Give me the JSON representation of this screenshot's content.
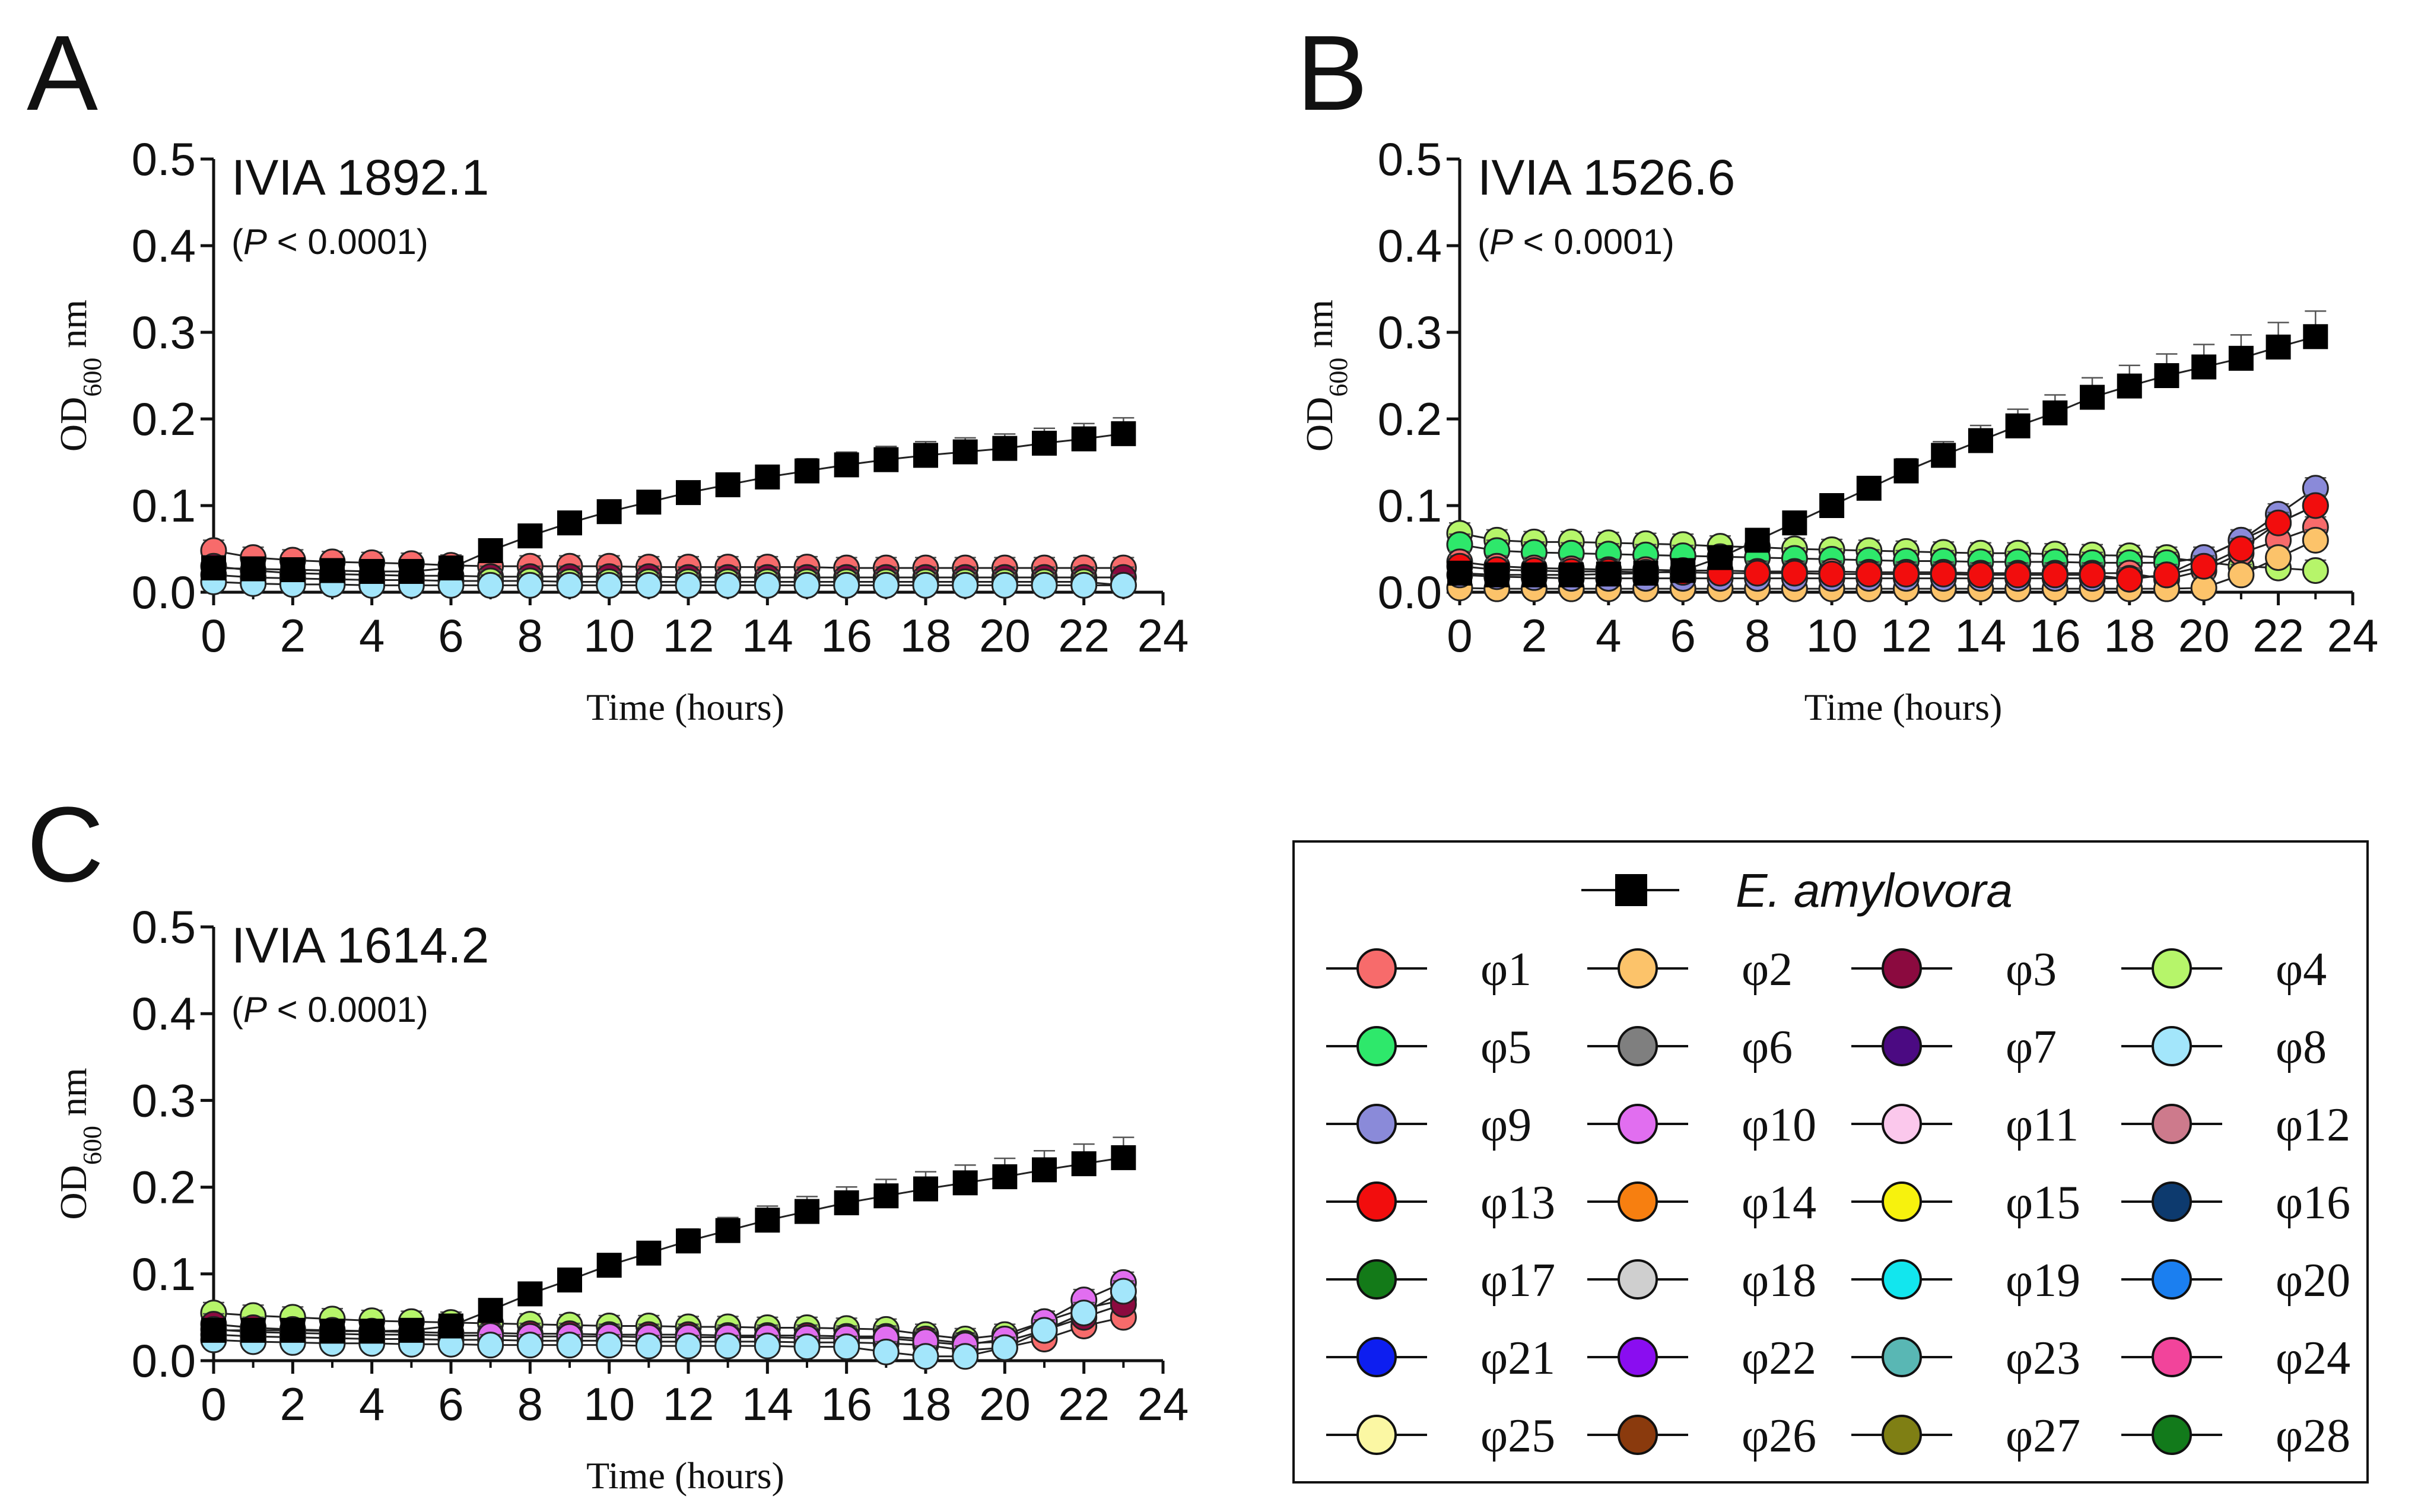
{
  "chart_data": [
    {
      "type": "line",
      "panel": "A",
      "title": "IVIA 1892.1",
      "p_value": "(P < 0.0001)",
      "xlabel": "Time (hours)",
      "ylabel": "OD600 nm",
      "xlim": [
        0,
        24
      ],
      "ylim": [
        0,
        0.5
      ],
      "xticks": [
        0,
        2,
        4,
        6,
        8,
        10,
        12,
        14,
        16,
        18,
        20,
        22,
        24
      ],
      "yticks": [
        0.0,
        0.1,
        0.2,
        0.3,
        0.4,
        0.5
      ],
      "x": [
        0,
        1,
        2,
        3,
        4,
        5,
        6,
        7,
        8,
        9,
        10,
        11,
        12,
        13,
        14,
        15,
        16,
        17,
        18,
        19,
        20,
        21,
        22,
        23
      ],
      "series": [
        {
          "name": "E. amylovora",
          "values": [
            0.028,
            0.027,
            0.026,
            0.025,
            0.024,
            0.024,
            0.028,
            0.048,
            0.065,
            0.08,
            0.093,
            0.104,
            0.115,
            0.124,
            0.133,
            0.14,
            0.147,
            0.153,
            0.158,
            0.162,
            0.166,
            0.172,
            0.177,
            0.183
          ]
        },
        {
          "name": "φ1",
          "values": [
            0.048,
            0.04,
            0.037,
            0.035,
            0.034,
            0.033,
            0.031,
            0.03,
            0.03,
            0.03,
            0.03,
            0.029,
            0.029,
            0.029,
            0.029,
            0.029,
            0.028,
            0.028,
            0.028,
            0.028,
            0.028,
            0.028,
            0.028,
            0.028
          ]
        },
        {
          "name": "φ3",
          "values": [
            0.03,
            0.025,
            0.022,
            0.021,
            0.02,
            0.019,
            0.019,
            0.018,
            0.018,
            0.018,
            0.018,
            0.018,
            0.017,
            0.017,
            0.017,
            0.017,
            0.017,
            0.017,
            0.017,
            0.017,
            0.017,
            0.017,
            0.017,
            0.017
          ]
        },
        {
          "name": "φ4",
          "values": [
            0.02,
            0.017,
            0.016,
            0.015,
            0.014,
            0.014,
            0.013,
            0.013,
            0.013,
            0.012,
            0.012,
            0.012,
            0.012,
            0.012,
            0.012,
            0.012,
            0.012,
            0.012,
            0.012,
            0.012,
            0.012,
            0.012,
            0.012,
            0.008
          ]
        },
        {
          "name": "φ8",
          "values": [
            0.012,
            0.01,
            0.009,
            0.009,
            0.008,
            0.008,
            0.008,
            0.008,
            0.008,
            0.008,
            0.008,
            0.008,
            0.008,
            0.008,
            0.008,
            0.008,
            0.008,
            0.008,
            0.008,
            0.008,
            0.008,
            0.008,
            0.008,
            0.008
          ]
        }
      ]
    },
    {
      "type": "line",
      "panel": "B",
      "title": "IVIA 1526.6",
      "p_value": "(P < 0.0001)",
      "xlabel": "Time (hours)",
      "ylabel": "OD600 nm",
      "xlim": [
        0,
        24
      ],
      "ylim": [
        0,
        0.5
      ],
      "xticks": [
        0,
        2,
        4,
        6,
        8,
        10,
        12,
        14,
        16,
        18,
        20,
        22,
        24
      ],
      "yticks": [
        0.0,
        0.1,
        0.2,
        0.3,
        0.4,
        0.5
      ],
      "x": [
        0,
        1,
        2,
        3,
        4,
        5,
        6,
        7,
        8,
        9,
        10,
        11,
        12,
        13,
        14,
        15,
        16,
        17,
        18,
        19,
        20,
        21,
        22,
        23
      ],
      "series": [
        {
          "name": "E. amylovora",
          "values": [
            0.022,
            0.02,
            0.02,
            0.02,
            0.021,
            0.022,
            0.025,
            0.04,
            0.06,
            0.08,
            0.1,
            0.12,
            0.14,
            0.158,
            0.175,
            0.192,
            0.207,
            0.225,
            0.238,
            0.25,
            0.26,
            0.27,
            0.283,
            0.295
          ]
        },
        {
          "name": "φ4",
          "values": [
            0.068,
            0.06,
            0.058,
            0.058,
            0.057,
            0.056,
            0.055,
            0.053,
            0.052,
            0.05,
            0.049,
            0.048,
            0.047,
            0.046,
            0.045,
            0.045,
            0.044,
            0.043,
            0.042,
            0.04,
            0.035,
            0.03,
            0.028,
            0.025
          ]
        },
        {
          "name": "φ5",
          "values": [
            0.055,
            0.048,
            0.046,
            0.045,
            0.044,
            0.043,
            0.042,
            0.041,
            0.04,
            0.039,
            0.038,
            0.037,
            0.036,
            0.036,
            0.035,
            0.035,
            0.035,
            0.034,
            0.034,
            0.034,
            0.04,
            0.06,
            0.08,
            0.1
          ]
        },
        {
          "name": "φ1",
          "values": [
            0.035,
            0.03,
            0.028,
            0.027,
            0.026,
            0.026,
            0.025,
            0.025,
            0.024,
            0.024,
            0.024,
            0.023,
            0.023,
            0.023,
            0.022,
            0.022,
            0.022,
            0.022,
            0.022,
            0.015,
            0.025,
            0.045,
            0.06,
            0.075
          ]
        },
        {
          "name": "φ2",
          "values": [
            0.005,
            0.004,
            0.004,
            0.004,
            0.004,
            0.004,
            0.004,
            0.004,
            0.004,
            0.004,
            0.004,
            0.004,
            0.004,
            0.004,
            0.004,
            0.004,
            0.004,
            0.004,
            0.004,
            0.004,
            0.005,
            0.02,
            0.04,
            0.06
          ]
        },
        {
          "name": "φ9",
          "values": [
            0.02,
            0.018,
            0.017,
            0.016,
            0.016,
            0.016,
            0.016,
            0.016,
            0.016,
            0.016,
            0.016,
            0.016,
            0.016,
            0.016,
            0.016,
            0.016,
            0.016,
            0.016,
            0.016,
            0.02,
            0.04,
            0.06,
            0.09,
            0.12
          ]
        },
        {
          "name": "φ13",
          "values": [
            0.03,
            0.026,
            0.025,
            0.024,
            0.024,
            0.023,
            0.023,
            0.022,
            0.022,
            0.022,
            0.021,
            0.021,
            0.021,
            0.021,
            0.02,
            0.02,
            0.02,
            0.02,
            0.015,
            0.02,
            0.03,
            0.05,
            0.08,
            0.1
          ]
        }
      ]
    },
    {
      "type": "line",
      "panel": "C",
      "title": "IVIA 1614.2",
      "p_value": "(P < 0.0001)",
      "xlabel": "Time (hours)",
      "ylabel": "OD600 nm",
      "xlim": [
        0,
        24
      ],
      "ylim": [
        0,
        0.5
      ],
      "xticks": [
        0,
        2,
        4,
        6,
        8,
        10,
        12,
        14,
        16,
        18,
        20,
        22,
        24
      ],
      "yticks": [
        0.0,
        0.1,
        0.2,
        0.3,
        0.4,
        0.5
      ],
      "x": [
        0,
        1,
        2,
        3,
        4,
        5,
        6,
        7,
        8,
        9,
        10,
        11,
        12,
        13,
        14,
        15,
        16,
        17,
        18,
        19,
        20,
        21,
        22,
        23
      ],
      "series": [
        {
          "name": "E. amylovora",
          "values": [
            0.035,
            0.035,
            0.035,
            0.034,
            0.034,
            0.035,
            0.04,
            0.058,
            0.077,
            0.093,
            0.11,
            0.124,
            0.138,
            0.15,
            0.162,
            0.172,
            0.182,
            0.19,
            0.198,
            0.205,
            0.212,
            0.22,
            0.227,
            0.234
          ]
        },
        {
          "name": "φ4",
          "values": [
            0.055,
            0.052,
            0.05,
            0.048,
            0.046,
            0.045,
            0.044,
            0.043,
            0.042,
            0.041,
            0.04,
            0.04,
            0.039,
            0.039,
            0.038,
            0.038,
            0.037,
            0.036,
            0.03,
            0.025,
            0.03,
            0.045,
            0.06,
            0.07
          ]
        },
        {
          "name": "φ1",
          "values": [
            0.03,
            0.028,
            0.027,
            0.026,
            0.025,
            0.025,
            0.024,
            0.024,
            0.023,
            0.023,
            0.023,
            0.022,
            0.022,
            0.022,
            0.022,
            0.021,
            0.021,
            0.02,
            0.018,
            0.012,
            0.015,
            0.025,
            0.04,
            0.05
          ]
        },
        {
          "name": "φ3",
          "values": [
            0.042,
            0.038,
            0.036,
            0.035,
            0.034,
            0.033,
            0.032,
            0.032,
            0.031,
            0.031,
            0.03,
            0.03,
            0.03,
            0.029,
            0.029,
            0.029,
            0.028,
            0.028,
            0.025,
            0.02,
            0.022,
            0.035,
            0.05,
            0.065
          ]
        },
        {
          "name": "φ10",
          "values": [
            0.036,
            0.033,
            0.032,
            0.031,
            0.03,
            0.03,
            0.029,
            0.029,
            0.028,
            0.028,
            0.028,
            0.027,
            0.027,
            0.027,
            0.027,
            0.026,
            0.026,
            0.026,
            0.022,
            0.018,
            0.025,
            0.045,
            0.07,
            0.09
          ]
        },
        {
          "name": "φ8",
          "values": [
            0.024,
            0.022,
            0.021,
            0.02,
            0.02,
            0.019,
            0.019,
            0.018,
            0.018,
            0.018,
            0.018,
            0.017,
            0.017,
            0.017,
            0.017,
            0.016,
            0.016,
            0.01,
            0.005,
            0.005,
            0.015,
            0.035,
            0.055,
            0.08
          ]
        }
      ]
    }
  ],
  "panel_labels": {
    "a": "A",
    "b": "B",
    "c": "C"
  },
  "legend": {
    "title": "E. amylovora",
    "items": [
      {
        "label": "φ1",
        "color": "#f76b6b"
      },
      {
        "label": "φ2",
        "color": "#fcc36a"
      },
      {
        "label": "φ3",
        "color": "#8b0a3f"
      },
      {
        "label": "φ4",
        "color": "#b6f56a"
      },
      {
        "label": "φ5",
        "color": "#2ee86b"
      },
      {
        "label": "φ6",
        "color": "#7f7f7f"
      },
      {
        "label": "φ7",
        "color": "#4b0a82"
      },
      {
        "label": "φ8",
        "color": "#a3e6fb"
      },
      {
        "label": "φ9",
        "color": "#8a8ad9"
      },
      {
        "label": "φ10",
        "color": "#e16ef0"
      },
      {
        "label": "φ11",
        "color": "#fbc8ec"
      },
      {
        "label": "φ12",
        "color": "#cd7a8c"
      },
      {
        "label": "φ13",
        "color": "#f20d0d"
      },
      {
        "label": "φ14",
        "color": "#f77f10"
      },
      {
        "label": "φ15",
        "color": "#f7f20d"
      },
      {
        "label": "φ16",
        "color": "#0d3a6e"
      },
      {
        "label": "φ17",
        "color": "#137a18"
      },
      {
        "label": "φ18",
        "color": "#cfcfcf"
      },
      {
        "label": "φ19",
        "color": "#12e6ee"
      },
      {
        "label": "φ20",
        "color": "#1b7ff0"
      },
      {
        "label": "φ21",
        "color": "#0d1ef0"
      },
      {
        "label": "φ22",
        "color": "#8a0df0"
      },
      {
        "label": "φ23",
        "color": "#59b7b4"
      },
      {
        "label": "φ24",
        "color": "#f2449b"
      },
      {
        "label": "φ25",
        "color": "#fbf7a3"
      },
      {
        "label": "φ26",
        "color": "#8a3a0d"
      },
      {
        "label": "φ27",
        "color": "#7f7f14"
      },
      {
        "label": "φ28",
        "color": "#127a1b"
      }
    ]
  }
}
